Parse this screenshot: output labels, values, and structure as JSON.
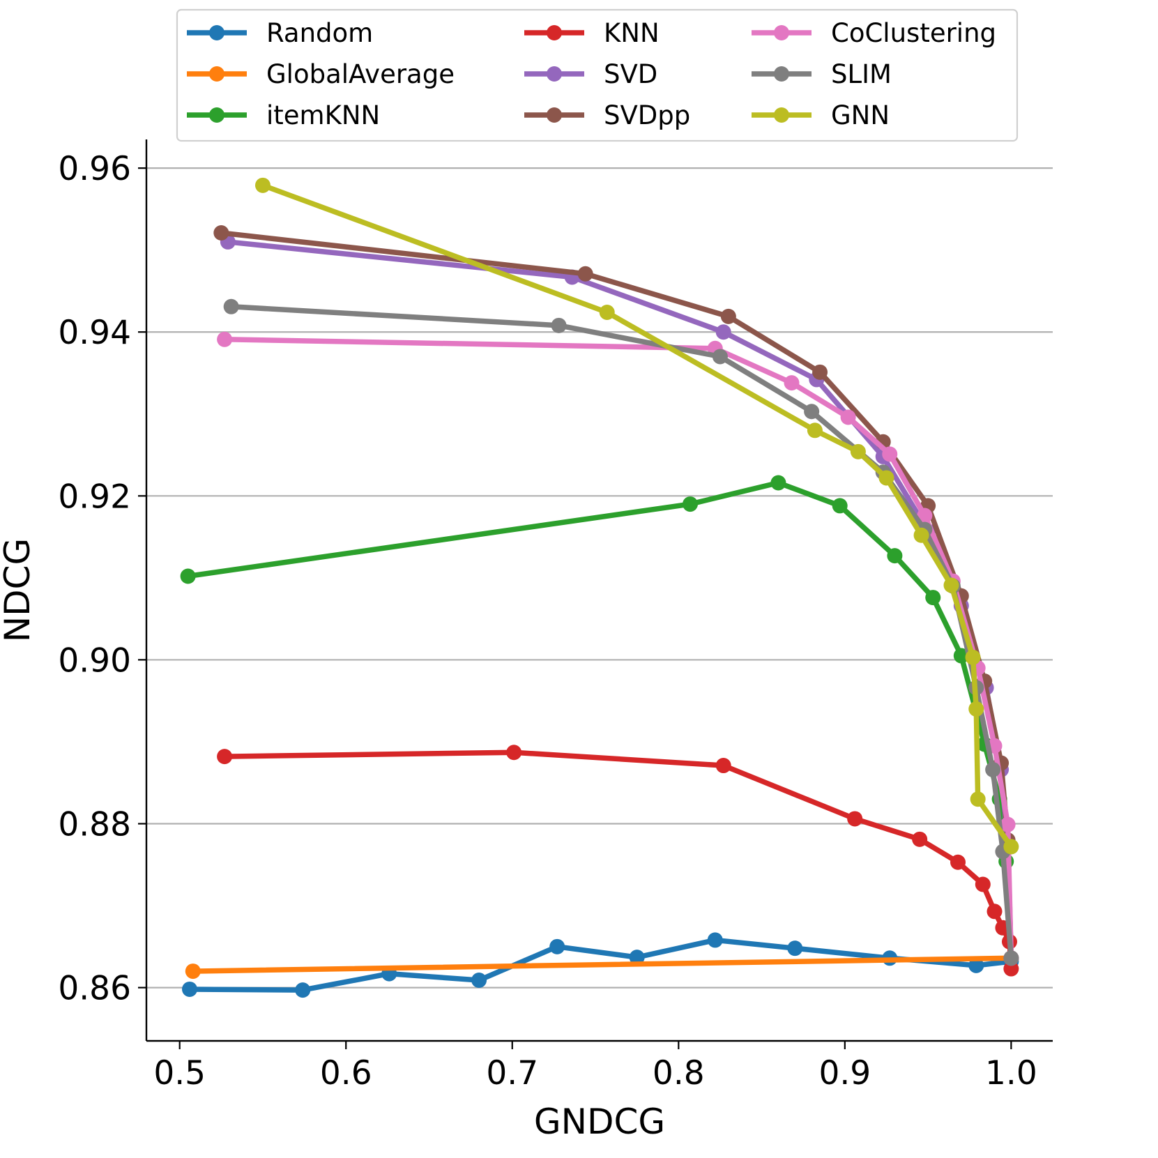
{
  "chart_data": {
    "type": "line",
    "title": "",
    "xlabel": "GNDCG",
    "ylabel": "NDCG",
    "xlim": [
      0.48,
      1.025
    ],
    "ylim": [
      0.8535,
      0.9635
    ],
    "xticks": [
      0.5,
      0.6,
      0.7,
      0.8,
      0.9,
      1.0
    ],
    "xtick_labels": [
      "0.5",
      "0.6",
      "0.7",
      "0.8",
      "0.9",
      "1.0"
    ],
    "yticks": [
      0.86,
      0.88,
      0.9,
      0.92,
      0.94,
      0.96
    ],
    "ytick_labels": [
      "0.86",
      "0.88",
      "0.90",
      "0.92",
      "0.94",
      "0.96"
    ],
    "grid": "horizontal",
    "legend_position": "top, above plot, 3 columns",
    "series": [
      {
        "name": "Random",
        "color": "#1f77b4",
        "x": [
          0.506,
          0.574,
          0.626,
          0.68,
          0.727,
          0.775,
          0.822,
          0.87,
          0.927,
          0.979,
          1.0
        ],
        "y": [
          0.8598,
          0.8597,
          0.8617,
          0.8609,
          0.865,
          0.8637,
          0.8658,
          0.8648,
          0.8636,
          0.8627,
          0.8632
        ]
      },
      {
        "name": "GlobalAverage",
        "color": "#ff7f0e",
        "x": [
          0.508,
          1.0
        ],
        "y": [
          0.862,
          0.8636
        ]
      },
      {
        "name": "itemKNN",
        "color": "#2ca02c",
        "x": [
          0.505,
          0.807,
          0.86,
          0.897,
          0.93,
          0.953,
          0.97,
          0.984,
          0.993,
          0.997,
          1.0
        ],
        "y": [
          0.9102,
          0.919,
          0.9216,
          0.9188,
          0.9127,
          0.9076,
          0.9005,
          0.8897,
          0.883,
          0.8754,
          0.8636
        ]
      },
      {
        "name": "KNN",
        "color": "#d62728",
        "x": [
          0.527,
          0.701,
          0.827,
          0.906,
          0.945,
          0.968,
          0.983,
          0.99,
          0.995,
          0.999,
          1.0
        ],
        "y": [
          0.8882,
          0.8887,
          0.8871,
          0.8806,
          0.8781,
          0.8753,
          0.8726,
          0.8693,
          0.8673,
          0.8656,
          0.8623
        ]
      },
      {
        "name": "SVD",
        "color": "#9467bd",
        "x": [
          0.529,
          0.736,
          0.827,
          0.883,
          0.923,
          0.95,
          0.97,
          0.985,
          0.994,
          0.998,
          1.0
        ],
        "y": [
          0.951,
          0.9467,
          0.94,
          0.9342,
          0.9248,
          0.9157,
          0.9066,
          0.8966,
          0.8866,
          0.8771,
          0.8636
        ]
      },
      {
        "name": "SVDpp",
        "color": "#8c564b",
        "x": [
          0.525,
          0.744,
          0.83,
          0.885,
          0.923,
          0.95,
          0.97,
          0.984,
          0.994,
          0.998,
          1.0
        ],
        "y": [
          0.9521,
          0.9471,
          0.9419,
          0.9351,
          0.9266,
          0.9188,
          0.9078,
          0.8974,
          0.8874,
          0.878,
          0.8636
        ]
      },
      {
        "name": "CoClustering",
        "color": "#e377c2",
        "x": [
          0.527,
          0.822,
          0.868,
          0.902,
          0.927,
          0.948,
          0.965,
          0.98,
          0.99,
          0.998,
          1.0
        ],
        "y": [
          0.9391,
          0.938,
          0.9338,
          0.9296,
          0.9251,
          0.9176,
          0.9096,
          0.899,
          0.8895,
          0.8799,
          0.8636
        ]
      },
      {
        "name": "SLIM",
        "color": "#7f7f7f",
        "x": [
          0.531,
          0.728,
          0.825,
          0.88,
          0.923,
          0.948,
          0.965,
          0.979,
          0.989,
          0.995,
          1.0
        ],
        "y": [
          0.9431,
          0.9408,
          0.937,
          0.9303,
          0.9229,
          0.9159,
          0.909,
          0.8966,
          0.8866,
          0.8766,
          0.8636
        ]
      },
      {
        "name": "GNN",
        "color": "#bcbd22",
        "x": [
          0.55,
          0.757,
          0.882,
          0.908,
          0.925,
          0.946,
          0.964,
          0.977,
          0.979,
          0.98,
          1.0
        ],
        "y": [
          0.9579,
          0.9424,
          0.928,
          0.9254,
          0.9222,
          0.9152,
          0.9091,
          0.9003,
          0.894,
          0.883,
          0.8772
        ]
      }
    ]
  }
}
